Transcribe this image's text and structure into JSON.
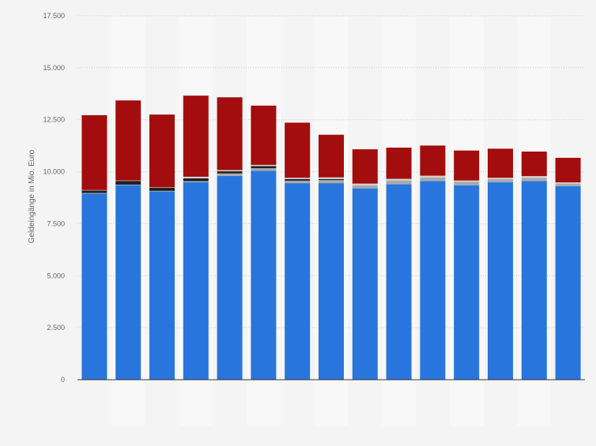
{
  "chart_data": {
    "type": "bar",
    "stacked": true,
    "title": "",
    "xlabel": "",
    "ylabel": "Geldeingänge in Mio. Euro",
    "ylim": [
      0,
      17500
    ],
    "yticks": [
      0,
      2500,
      5000,
      7500,
      10000,
      12500,
      15000,
      17500
    ],
    "ytick_labels": [
      "0",
      "2.500",
      "5.000",
      "7.500",
      "10.000",
      "12.500",
      "15.000",
      "17.500"
    ],
    "grid": true,
    "legend": "none",
    "categories": [
      "",
      "",
      "",
      "",
      "",
      "",
      "",
      "",
      "",
      "",
      "",
      "",
      "",
      "",
      ""
    ],
    "series": [
      {
        "color": "#2876dd",
        "values": [
          8950,
          9350,
          9050,
          9500,
          9800,
          10050,
          9450,
          9450,
          9200,
          9400,
          9550,
          9350,
          9500,
          9550,
          9300
        ]
      },
      {
        "color": "#a9a9a9",
        "values": [
          30,
          30,
          30,
          50,
          120,
          120,
          120,
          150,
          150,
          180,
          180,
          170,
          150,
          150,
          130
        ]
      },
      {
        "color": "#1c1f24",
        "values": [
          120,
          180,
          150,
          130,
          100,
          100,
          80,
          50,
          0,
          0,
          0,
          0,
          0,
          0,
          0
        ]
      },
      {
        "color": "#d2d2d2",
        "values": [
          20,
          20,
          20,
          80,
          60,
          60,
          60,
          80,
          80,
          80,
          80,
          60,
          60,
          90,
          60
        ]
      },
      {
        "color": "#a30d0d",
        "values": [
          3600,
          3850,
          3500,
          3900,
          3500,
          2850,
          2650,
          2050,
          1650,
          1500,
          1450,
          1440,
          1400,
          1180,
          1180
        ]
      }
    ]
  }
}
